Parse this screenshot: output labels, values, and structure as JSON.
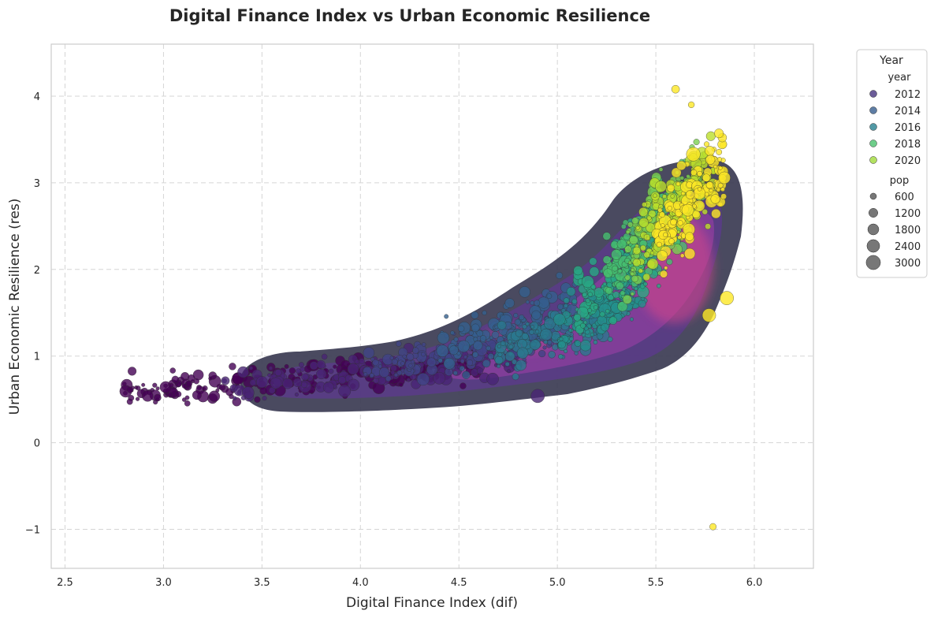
{
  "chart_data": {
    "type": "scatter",
    "title": "Digital Finance Index vs Urban Economic Resilience",
    "xlabel": "Digital Finance Index (dif)",
    "ylabel": "Urban Economic Resilience (res)",
    "xlim": [
      2.43,
      6.3
    ],
    "ylim": [
      -1.45,
      4.6
    ],
    "xticks": [
      2.5,
      3.0,
      3.5,
      4.0,
      4.5,
      5.0,
      5.5,
      6.0
    ],
    "xtick_labels": [
      "2.5",
      "3.0",
      "3.5",
      "4.0",
      "4.5",
      "5.0",
      "5.5",
      "6.0"
    ],
    "yticks": [
      -1,
      0,
      1,
      2,
      3,
      4
    ],
    "ytick_labels": [
      "−1",
      "0",
      "1",
      "2",
      "3",
      "4"
    ],
    "grid": true,
    "density_contour": true,
    "legend": {
      "title": "Year",
      "placement": "outside-right",
      "hue_header": "year",
      "hue_entries": [
        {
          "label": "2012",
          "color": "#46337e"
        },
        {
          "label": "2014",
          "color": "#365c8d"
        },
        {
          "label": "2016",
          "color": "#277f8e"
        },
        {
          "label": "2018",
          "color": "#4ac16d"
        },
        {
          "label": "2020",
          "color": "#a0da39"
        }
      ],
      "size_header": "pop",
      "size_entries": [
        {
          "label": "600",
          "value": 600
        },
        {
          "label": "1200",
          "value": 1200
        },
        {
          "label": "1800",
          "value": 1800
        },
        {
          "label": "2400",
          "value": 2400
        },
        {
          "label": "3000",
          "value": 3000
        }
      ]
    },
    "color_range": {
      "year_min": 2011,
      "year_max": 2021
    },
    "series": [
      {
        "year": 2011,
        "x_range": [
          2.8,
          4.6
        ],
        "y_range": [
          0.3,
          1.1
        ],
        "count": 230
      },
      {
        "year": 2012,
        "x_range": [
          3.3,
          4.8
        ],
        "y_range": [
          0.35,
          1.2
        ],
        "count": 160
      },
      {
        "year": 2013,
        "x_range": [
          4.0,
          5.0
        ],
        "y_range": [
          0.45,
          1.5
        ],
        "count": 150
      },
      {
        "year": 2014,
        "x_range": [
          4.4,
          5.1
        ],
        "y_range": [
          0.55,
          1.9
        ],
        "count": 150
      },
      {
        "year": 2015,
        "x_range": [
          4.7,
          5.3
        ],
        "y_range": [
          0.6,
          1.8
        ],
        "count": 150
      },
      {
        "year": 2016,
        "x_range": [
          5.0,
          5.45
        ],
        "y_range": [
          0.7,
          2.3
        ],
        "count": 150
      },
      {
        "year": 2017,
        "x_range": [
          5.1,
          5.55
        ],
        "y_range": [
          0.9,
          2.8
        ],
        "count": 150
      },
      {
        "year": 2018,
        "x_range": [
          5.25,
          5.65
        ],
        "y_range": [
          1.2,
          3.3
        ],
        "count": 150
      },
      {
        "year": 2019,
        "x_range": [
          5.35,
          5.75
        ],
        "y_range": [
          1.4,
          3.6
        ],
        "count": 140
      },
      {
        "year": 2020,
        "x_range": [
          5.4,
          5.8
        ],
        "y_range": [
          1.5,
          3.7
        ],
        "count": 140
      },
      {
        "year": 2021,
        "x_range": [
          5.5,
          5.85
        ],
        "y_range": [
          1.6,
          3.7
        ],
        "count": 140
      }
    ],
    "outliers": [
      {
        "x": 5.6,
        "y": 4.08,
        "year": 2021,
        "pop": 1000
      },
      {
        "x": 5.68,
        "y": 3.9,
        "year": 2021,
        "pop": 600
      },
      {
        "x": 5.79,
        "y": -0.97,
        "year": 2021,
        "pop": 700
      },
      {
        "x": 2.83,
        "y": 0.61,
        "year": 2011,
        "pop": 600
      },
      {
        "x": 2.97,
        "y": 0.52,
        "year": 2011,
        "pop": 800
      },
      {
        "x": 3.06,
        "y": 0.73,
        "year": 2011,
        "pop": 800
      },
      {
        "x": 3.13,
        "y": 0.68,
        "year": 2011,
        "pop": 600
      },
      {
        "x": 3.17,
        "y": 0.55,
        "year": 2011,
        "pop": 1300
      },
      {
        "x": 3.35,
        "y": 0.88,
        "year": 2011,
        "pop": 800
      },
      {
        "x": 5.86,
        "y": 1.67,
        "year": 2021,
        "pop": 2900
      },
      {
        "x": 5.77,
        "y": 1.47,
        "year": 2021,
        "pop": 2800
      },
      {
        "x": 5.69,
        "y": 3.33,
        "year": 2021,
        "pop": 3000
      },
      {
        "x": 5.82,
        "y": 3.57,
        "year": 2021,
        "pop": 1300
      },
      {
        "x": 5.01,
        "y": 1.93,
        "year": 2014,
        "pop": 700
      },
      {
        "x": 4.9,
        "y": 0.54,
        "year": 2012,
        "pop": 2900
      }
    ]
  }
}
